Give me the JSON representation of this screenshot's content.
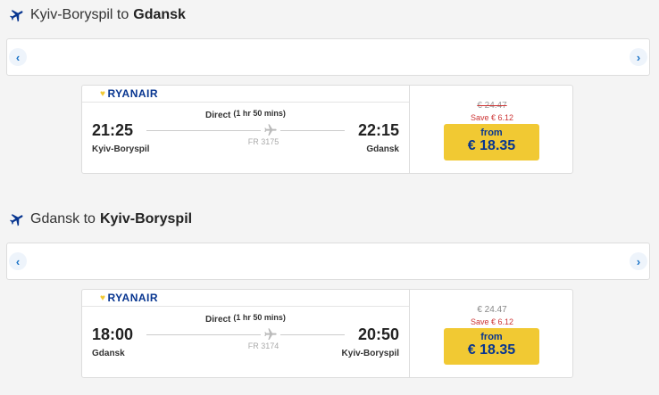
{
  "colors": {
    "brand": "#073590",
    "accent": "#f1c933",
    "save": "#cc3333"
  },
  "sections": [
    {
      "from": "Kyiv-Boryspil",
      "connector": "to",
      "to": "Gdansk",
      "flight": {
        "airline": "RYANAIR",
        "type": "Direct",
        "duration": "(1 hr 50 mins)",
        "dep_time": "21:25",
        "dep_city": "Kyiv-Boryspil",
        "arr_time": "22:15",
        "arr_city": "Gdansk",
        "flight_no": "FR 3175"
      },
      "price": {
        "original": "€ 24.47",
        "original_struck": true,
        "save": "Save  € 6.12",
        "from_label": "from",
        "amount": "€ 18.35"
      }
    },
    {
      "from": "Gdansk",
      "connector": "to",
      "to": "Kyiv-Boryspil",
      "flight": {
        "airline": "RYANAIR",
        "type": "Direct",
        "duration": "(1 hr 50 mins)",
        "dep_time": "18:00",
        "dep_city": "Gdansk",
        "arr_time": "20:50",
        "arr_city": "Kyiv-Boryspil",
        "flight_no": "FR 3174"
      },
      "price": {
        "original": "€ 24.47",
        "original_struck": false,
        "save": "Save  € 6.12",
        "from_label": "from",
        "amount": "€ 18.35"
      }
    }
  ],
  "icons": {
    "prev": "‹",
    "next": "›"
  }
}
